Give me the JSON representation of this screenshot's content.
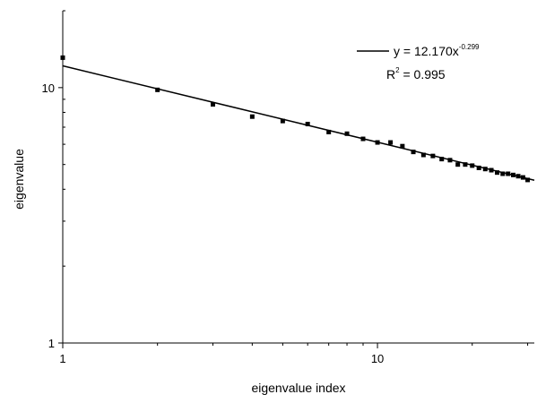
{
  "chart_data": {
    "type": "scatter",
    "x_scale": "log",
    "y_scale": "log",
    "xlim": [
      1,
      31.5
    ],
    "ylim": [
      1,
      20
    ],
    "xlabel": "eigenvalue index",
    "ylabel": "eigenvalue",
    "x_ticks": [
      {
        "value": 1,
        "label": "1"
      },
      {
        "value": 10,
        "label": "10"
      }
    ],
    "y_ticks": [
      {
        "value": 1,
        "label": "1"
      },
      {
        "value": 10,
        "label": "10"
      }
    ],
    "grid": false,
    "legend_position": "top-right",
    "points": {
      "x": [
        1,
        2,
        3,
        4,
        5,
        6,
        7,
        8,
        9,
        10,
        11,
        12,
        13,
        14,
        15,
        16,
        17,
        18,
        19,
        20,
        21,
        22,
        23,
        24,
        25,
        26,
        27,
        28,
        29,
        30
      ],
      "y": [
        13.1,
        9.8,
        8.6,
        7.7,
        7.4,
        7.2,
        6.7,
        6.6,
        6.3,
        6.1,
        6.1,
        5.9,
        5.6,
        5.45,
        5.4,
        5.25,
        5.2,
        5.0,
        5.0,
        4.95,
        4.85,
        4.8,
        4.75,
        4.65,
        4.6,
        4.6,
        4.55,
        4.5,
        4.45,
        4.35
      ]
    },
    "fit": {
      "a": 12.17,
      "b": -0.299,
      "equation_prefix": "y = 12.170x",
      "equation_exponent": "-0.299",
      "r2_prefix": "R",
      "r2_superscript": "2",
      "r2_value": " = 0.995"
    }
  }
}
